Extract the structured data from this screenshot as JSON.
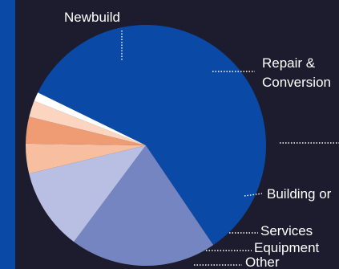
{
  "colors": {
    "background": "#1c1c2e",
    "accent_bar": "#0a4aa6",
    "leader": "#ffffff"
  },
  "chart_data": {
    "type": "pie",
    "title": "",
    "slices": [
      {
        "label": "Newbuild",
        "value": 58.3,
        "color": "#0a4aa6"
      },
      {
        "label": "Repair & Conversion",
        "value": 19.7,
        "color": "#7485c2"
      },
      {
        "label": "",
        "value": 11.0,
        "color": "#b9bfe3"
      },
      {
        "label": "Building or",
        "value": 4.0,
        "color": "#f8bea0"
      },
      {
        "label": "Services",
        "value": 3.6,
        "color": "#ef9c74"
      },
      {
        "label": "Equipment",
        "value": 2.2,
        "color": "#fbd5bf"
      },
      {
        "label": "Other",
        "value": 1.2,
        "color": "#ffffff"
      }
    ]
  }
}
